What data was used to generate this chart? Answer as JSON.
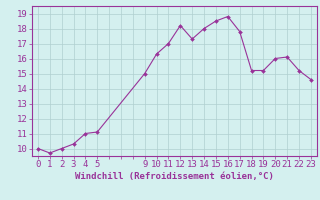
{
  "x": [
    0,
    1,
    2,
    3,
    4,
    5,
    9,
    10,
    11,
    12,
    13,
    14,
    15,
    16,
    17,
    18,
    19,
    20,
    21,
    22,
    23
  ],
  "y": [
    10.0,
    9.7,
    10.0,
    10.3,
    11.0,
    11.1,
    15.0,
    16.3,
    17.0,
    18.2,
    17.3,
    18.0,
    18.5,
    18.8,
    17.8,
    15.2,
    15.2,
    16.0,
    16.1,
    15.2,
    14.6
  ],
  "line_color": "#993399",
  "bg_color": "#d4f0ef",
  "grid_color": "#b0d0d0",
  "axis_color": "#993399",
  "tick_label_color": "#993399",
  "xlabel": "Windchill (Refroidissement éolien,°C)",
  "yticks": [
    10,
    11,
    12,
    13,
    14,
    15,
    16,
    17,
    18,
    19
  ],
  "ylim": [
    9.5,
    19.5
  ],
  "xlim": [
    -0.5,
    23.5
  ],
  "xlabel_fontsize": 6.5,
  "tick_fontsize": 6.5,
  "linewidth": 0.8,
  "markersize": 2.0
}
